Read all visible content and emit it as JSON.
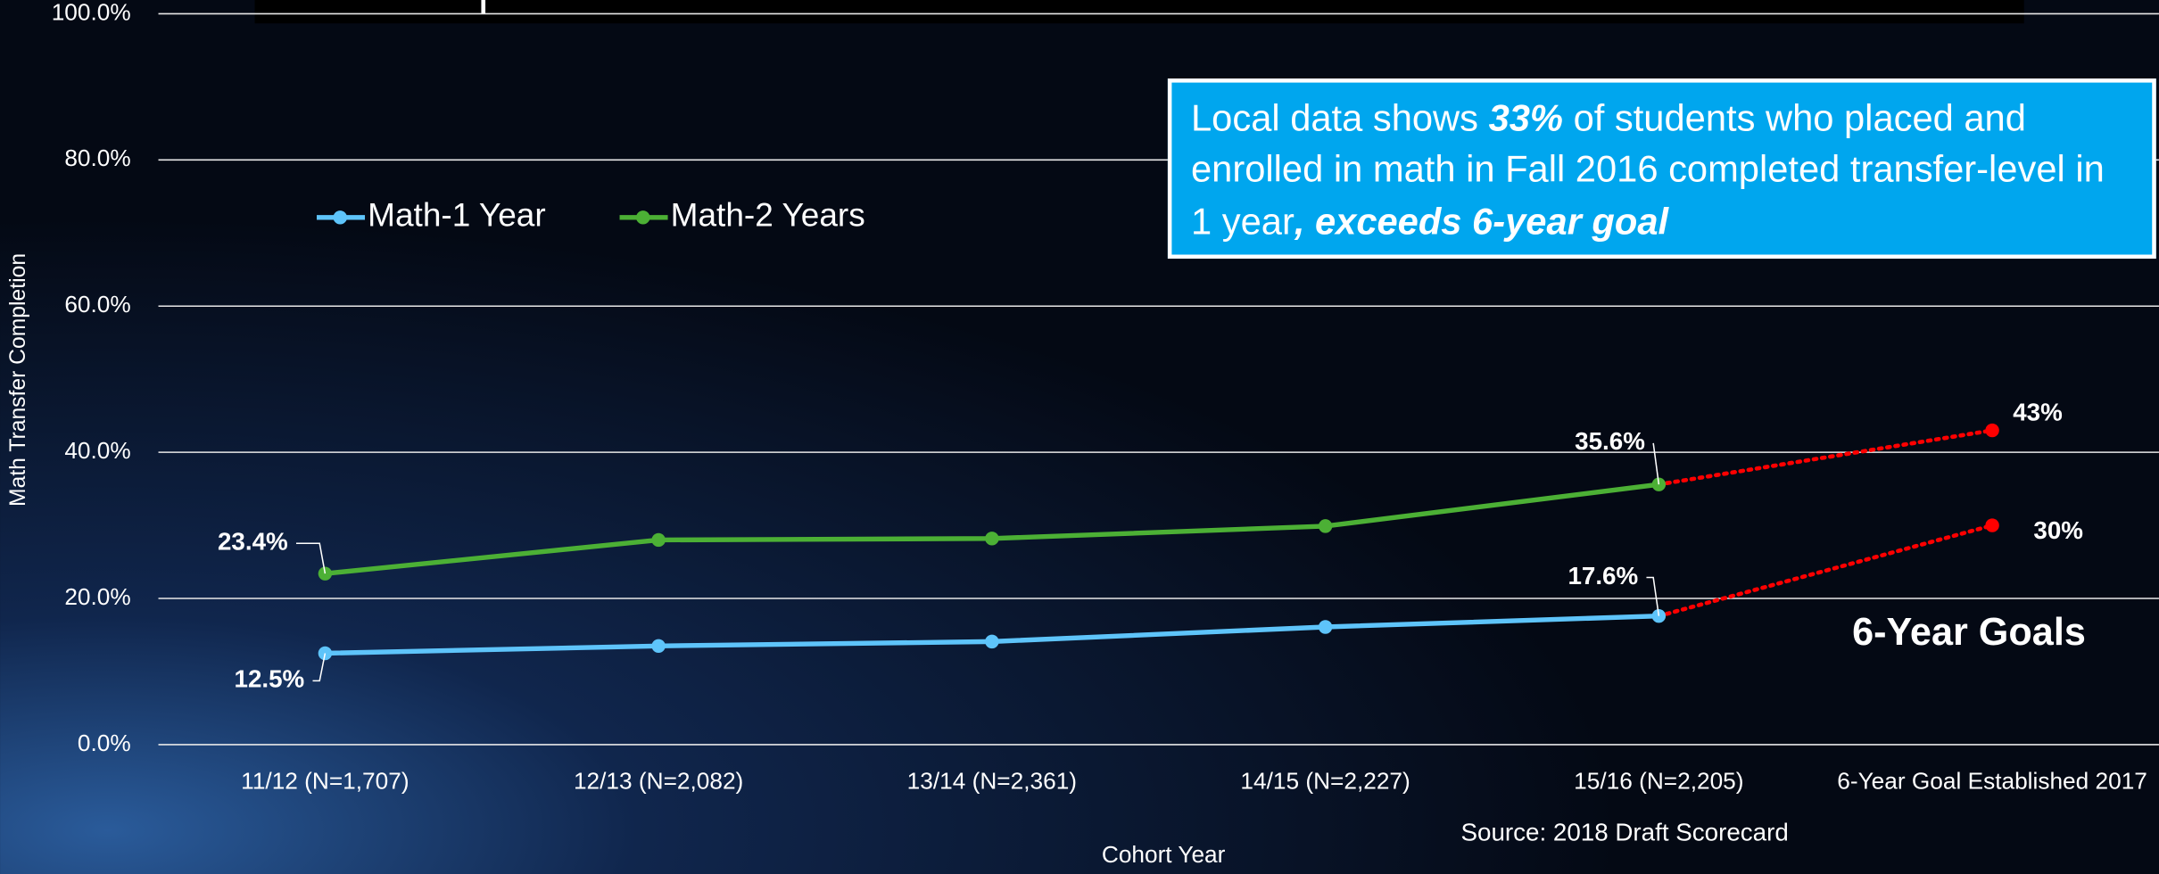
{
  "chart_data": {
    "type": "line",
    "x_label": "Cohort Year",
    "y_label": "Math Transfer Completion",
    "categories": [
      "11/12 (N=1,707)",
      "12/13 (N=2,082)",
      "13/14 (N=2,361)",
      "14/15 (N=2,227)",
      "15/16 (N=2,205)",
      "6-Year Goal Established 2017"
    ],
    "series": [
      {
        "name": "Math-1 Year",
        "color": "#5ec4fa",
        "values": [
          12.5,
          13.5,
          14.1,
          16.1,
          17.6,
          null
        ],
        "value_labels": [
          "12.5%",
          null,
          null,
          null,
          "17.6%",
          null
        ]
      },
      {
        "name": "Math-2 Years",
        "color": "#4cb035",
        "values": [
          23.4,
          28.0,
          28.2,
          29.9,
          35.6,
          null
        ],
        "value_labels": [
          "23.4%",
          null,
          null,
          null,
          "35.6%",
          null
        ]
      }
    ],
    "goals": {
      "label": "6-Year Goals",
      "color": "#ff0000",
      "values": [
        30,
        43
      ],
      "value_labels": [
        "30%",
        "43%"
      ]
    },
    "ylim": [
      0,
      100
    ],
    "yticks": [
      {
        "value": 0,
        "label": "0.0%"
      },
      {
        "value": 20,
        "label": "20.0%"
      },
      {
        "value": 40,
        "label": "40.0%"
      },
      {
        "value": 60,
        "label": "60.0%"
      },
      {
        "value": 80,
        "label": "80.0%"
      },
      {
        "value": 100,
        "label": "100.0%"
      }
    ],
    "grid": true,
    "annotation": [
      "Local data shows ",
      "33%",
      " of students who placed and enrolled in math in Fall 2016 completed transfer-level in 1 year",
      ", exceeds 6-year goal"
    ],
    "source": "Source: 2018 Draft Scorecard"
  }
}
